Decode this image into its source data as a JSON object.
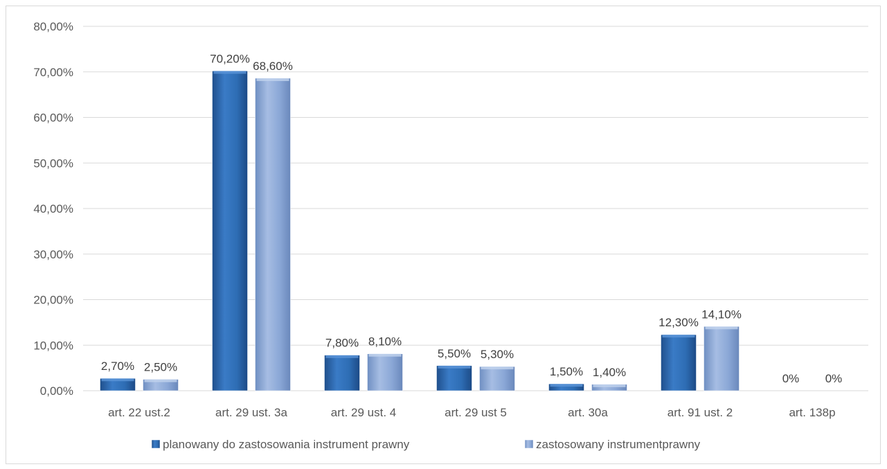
{
  "chart_data": {
    "type": "bar",
    "title": "",
    "xlabel": "",
    "ylabel": "",
    "ylim": [
      0,
      80
    ],
    "yticks": [
      0,
      10,
      20,
      30,
      40,
      50,
      60,
      70,
      80
    ],
    "ytick_labels": [
      "0,00%",
      "10,00%",
      "20,00%",
      "30,00%",
      "40,00%",
      "50,00%",
      "60,00%",
      "70,00%",
      "80,00%"
    ],
    "grid": true,
    "legend_position": "bottom",
    "categories": [
      "art. 22 ust.2",
      "art. 29 ust. 3a",
      "art. 29 ust. 4",
      "art. 29 ust 5",
      "art. 30a",
      "art. 91 ust. 2",
      "art. 138p"
    ],
    "series": [
      {
        "name": "planowany do zastosowania instrument prawny",
        "color": "#2e6db4",
        "values": [
          2.7,
          70.2,
          7.8,
          5.5,
          1.5,
          12.3,
          0
        ],
        "labels": [
          "2,70%",
          "70,20%",
          "7,80%",
          "5,50%",
          "1,50%",
          "12,30%",
          "0%"
        ]
      },
      {
        "name": "zastosowany instrumentprawny",
        "color": "#8aa7d6",
        "values": [
          2.5,
          68.6,
          8.1,
          5.3,
          1.4,
          14.1,
          0
        ],
        "labels": [
          "2,50%",
          "68,60%",
          "8,10%",
          "5,30%",
          "1,40%",
          "14,10%",
          "0%"
        ]
      }
    ]
  }
}
